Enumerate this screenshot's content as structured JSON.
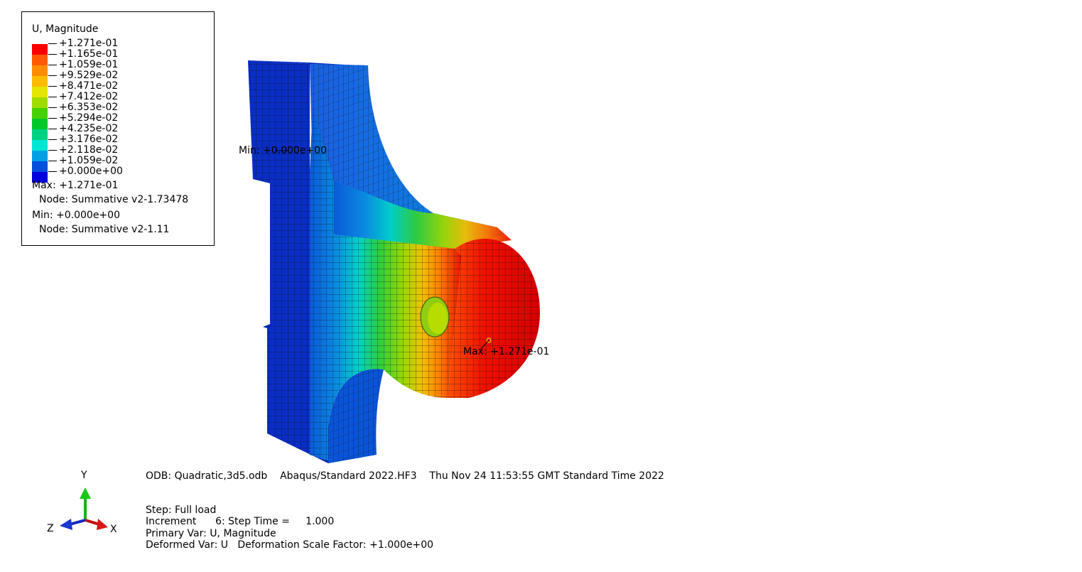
{
  "legend": {
    "title": "U, Magnitude",
    "ticks": [
      "+1.271e-01",
      "+1.165e-01",
      "+1.059e-01",
      "+9.529e-02",
      "+8.471e-02",
      "+7.412e-02",
      "+6.353e-02",
      "+5.294e-02",
      "+4.235e-02",
      "+3.176e-02",
      "+2.118e-02",
      "+1.059e-02",
      "+0.000e+00"
    ],
    "colors": [
      "#ff0000",
      "#ff5a00",
      "#ff8c00",
      "#ffbb00",
      "#e6e600",
      "#a0dc00",
      "#46d200",
      "#00c828",
      "#00d282",
      "#00e6d2",
      "#00a0e6",
      "#0050dc",
      "#0000dc"
    ],
    "max_label": "Max: +1.271e-01",
    "max_node": "Node: Summative v2-1.73478",
    "min_label": "Min: +0.000e+00",
    "min_node": "Node: Summative v2-1.11"
  },
  "annotations": {
    "min": "Min: +0.000e+00",
    "max": "Max: +1.271e-01"
  },
  "footer": {
    "odb_line": "ODB: Quadratic,3d5.odb    Abaqus/Standard 2022.HF3    Thu Nov 24 11:53:55 GMT Standard Time 2022",
    "step": "Step: Full load",
    "increment": "Increment      6: Step Time =     1.000",
    "primary_var": "Primary Var: U, Magnitude",
    "deformed_var": "Deformed Var: U   Deformation Scale Factor: +1.000e+00"
  },
  "triad": {
    "y": "Y",
    "z": "Z",
    "x": "X"
  }
}
